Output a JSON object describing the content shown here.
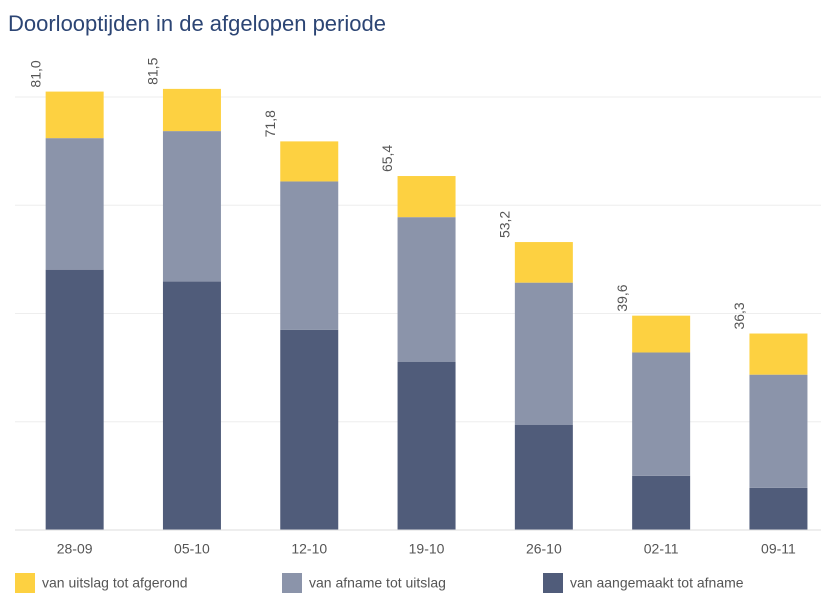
{
  "chart_data": {
    "type": "stacked_bar",
    "title": "Doorlooptijden in de afgelopen periode",
    "categories": [
      "28-09",
      "05-10",
      "12-10",
      "19-10",
      "26-10",
      "02-11",
      "09-11"
    ],
    "series": [
      {
        "name": "van uitslag tot afgerond",
        "color": "#fdd141",
        "values": [
          8.6,
          7.8,
          7.4,
          7.6,
          7.5,
          6.8,
          7.6
        ]
      },
      {
        "name": "van afname tot uitslag",
        "color": "#8b94aa",
        "values": [
          24.3,
          27.8,
          27.4,
          26.7,
          26.3,
          22.8,
          20.9
        ]
      },
      {
        "name": "van aangemaakt tot afname",
        "color": "#505c7a",
        "values": [
          48.1,
          45.9,
          37.0,
          31.1,
          19.4,
          10.0,
          7.8
        ]
      }
    ],
    "totals": [
      81.0,
      81.5,
      71.8,
      65.4,
      53.2,
      39.6,
      36.3
    ],
    "total_labels": [
      "81,0",
      "81,5",
      "71,8",
      "65,4",
      "53,2",
      "39,6",
      "36,3"
    ],
    "ylim": [
      0,
      80
    ],
    "yticks": [
      0,
      20,
      40,
      60,
      80
    ],
    "grid": true
  }
}
